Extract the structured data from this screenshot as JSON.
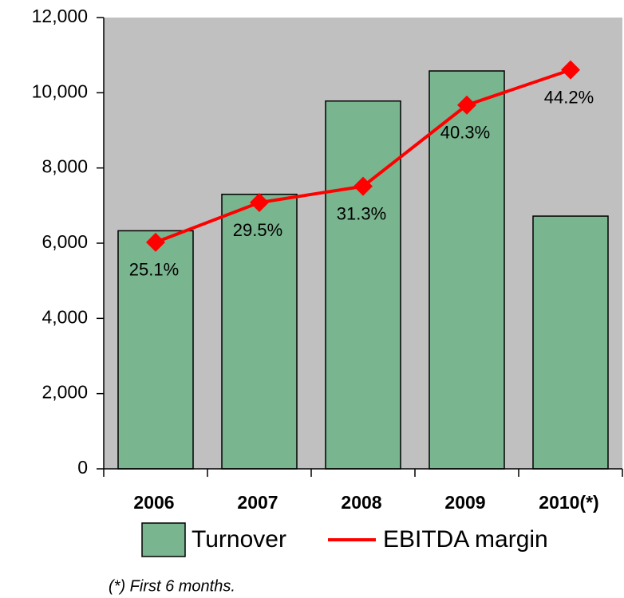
{
  "chart_data": {
    "type": "bar",
    "categories": [
      "2006",
      "2007",
      "2008",
      "2009",
      "2010(*)"
    ],
    "series": [
      {
        "name": "Turnover",
        "type": "bar",
        "color": "#79b58f",
        "values": [
          6330,
          7300,
          9780,
          10580,
          6720
        ]
      },
      {
        "name": "EBITDA margin",
        "type": "line",
        "axis": "y2",
        "color": "#ff0000",
        "values": [
          25.1,
          29.5,
          31.3,
          40.3,
          44.2
        ],
        "value_labels": [
          "25.1%",
          "29.5%",
          "31.3%",
          "40.3%",
          "44.2%"
        ]
      }
    ],
    "ylim": [
      0,
      12000
    ],
    "yticks": [
      0,
      {
        "value": 2000,
        "label": "2,000"
      },
      {
        "value": 4000,
        "label": "4,000"
      },
      {
        "value": 6000,
        "label": "6,000"
      },
      {
        "value": 8000,
        "label": "8,000"
      },
      {
        "value": 10000,
        "label": "10,000"
      },
      {
        "value": 12000,
        "label": "12,000"
      }
    ],
    "y2lim": [
      0,
      50
    ],
    "plot_background": "#c0c0c0",
    "footnote": "(*) First 6 months."
  }
}
